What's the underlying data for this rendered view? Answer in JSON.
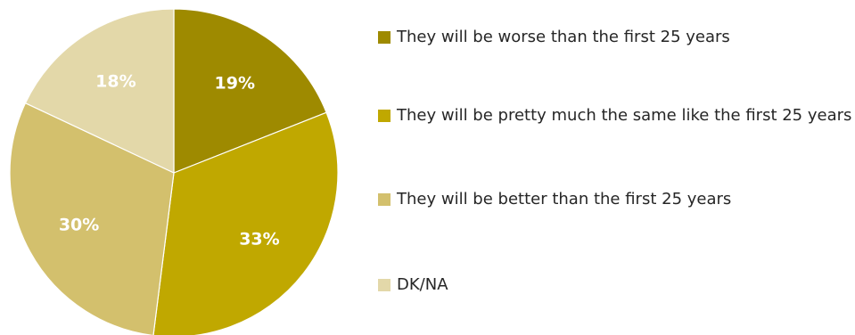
{
  "chart_data": {
    "type": "pie",
    "title": "",
    "slices": [
      {
        "label": "They will be worse than the first 25 years",
        "value": 19,
        "display": "19%",
        "color": "#9e8a00"
      },
      {
        "label": "They will be pretty much the same like the first 25 years",
        "value": 33,
        "display": "33%",
        "color": "#c0a800"
      },
      {
        "label": "They will be better than the first 25 years",
        "value": 30,
        "display": "30%",
        "color": "#d3c06d"
      },
      {
        "label": "DK/NA",
        "value": 18,
        "display": "18%",
        "color": "#e3d8a9"
      }
    ],
    "start_angle": "12 o'clock",
    "direction": "clockwise",
    "legend_position": "right"
  }
}
